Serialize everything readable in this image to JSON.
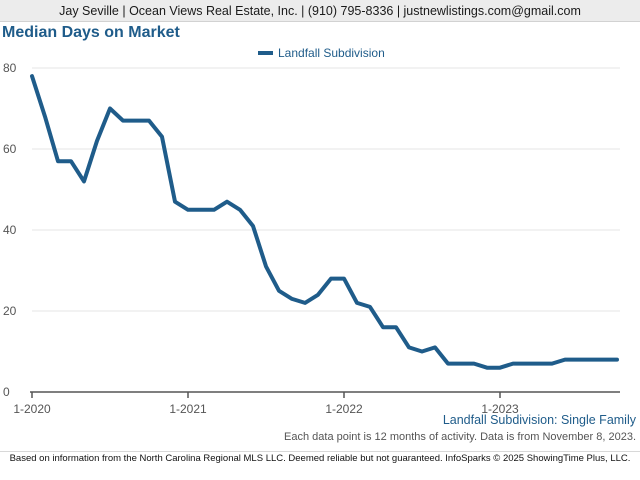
{
  "header": {
    "text": "Jay Seville | Ocean Views Real Estate, Inc. | (910) 795-8336 | justnewlistings.com@gmail.com"
  },
  "colors": {
    "series": "#1f5c8a",
    "axis": "#555555",
    "grid": "#e6e6e6"
  },
  "chart_data": {
    "type": "line",
    "title": "Median Days on Market",
    "xlabel": "",
    "ylabel": "",
    "ylim": [
      0,
      80
    ],
    "yticks": [
      "0",
      "20",
      "40",
      "60",
      "80"
    ],
    "xticks": [
      "1-2020",
      "1-2021",
      "1-2022",
      "1-2023"
    ],
    "grid": "horizontal",
    "legend_position": "top-center",
    "x": [
      "1-2020",
      "2-2020",
      "3-2020",
      "4-2020",
      "5-2020",
      "6-2020",
      "7-2020",
      "8-2020",
      "9-2020",
      "10-2020",
      "11-2020",
      "12-2020",
      "1-2021",
      "2-2021",
      "3-2021",
      "4-2021",
      "5-2021",
      "6-2021",
      "7-2021",
      "8-2021",
      "9-2021",
      "10-2021",
      "11-2021",
      "12-2021",
      "1-2022",
      "2-2022",
      "3-2022",
      "4-2022",
      "5-2022",
      "6-2022",
      "7-2022",
      "8-2022",
      "9-2022",
      "10-2022",
      "11-2022",
      "12-2022",
      "1-2023",
      "2-2023",
      "3-2023",
      "4-2023",
      "5-2023",
      "6-2023",
      "7-2023",
      "8-2023",
      "9-2023",
      "10-2023"
    ],
    "series": [
      {
        "name": "Landfall Subdivision",
        "values": [
          78,
          68,
          57,
          57,
          52,
          62,
          70,
          67,
          67,
          67,
          63,
          47,
          45,
          45,
          45,
          47,
          45,
          41,
          31,
          25,
          23,
          22,
          24,
          28,
          28,
          22,
          21,
          16,
          16,
          11,
          10,
          11,
          7,
          7,
          7,
          6,
          6,
          7,
          7,
          7,
          7,
          8,
          8,
          8,
          8,
          8
        ]
      }
    ]
  },
  "subtitle": "Landfall Subdivision: Single Family",
  "note": "Each data point is 12 months of activity. Data is from November 8, 2023.",
  "footer": "Based on information from the North Carolina Regional MLS LLC. Deemed reliable but not guaranteed. InfoSparks © 2025 ShowingTime Plus, LLC."
}
